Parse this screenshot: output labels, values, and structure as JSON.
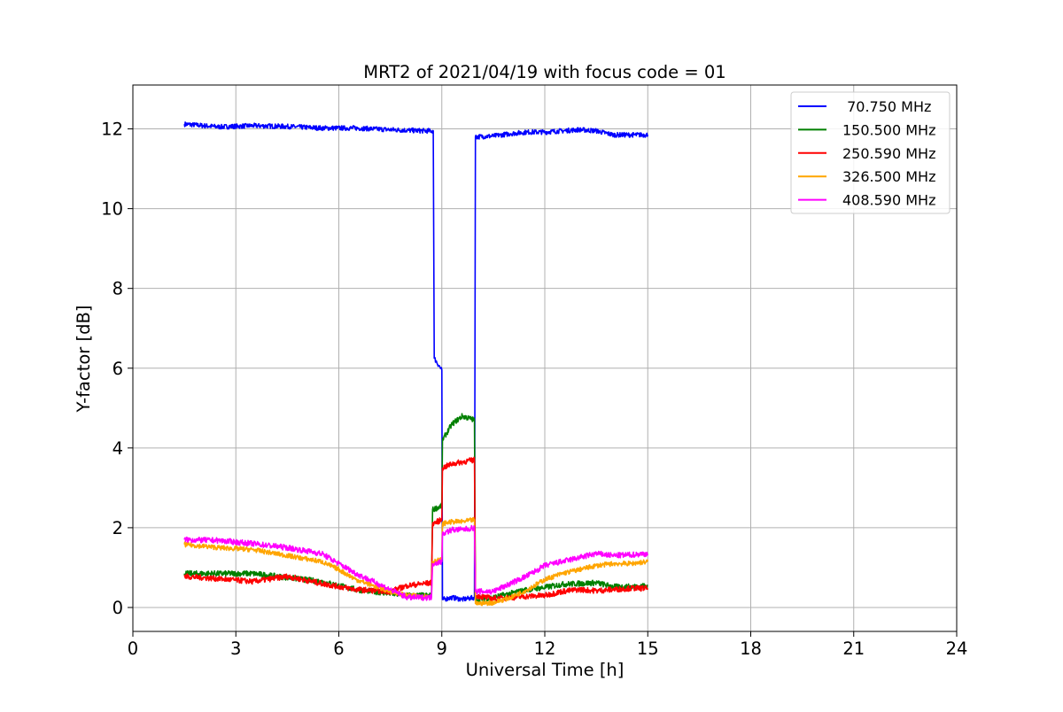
{
  "chart_data": {
    "type": "line",
    "title": "MRT2 of 2021/04/19 with focus code = 01",
    "xlabel": "Universal Time [h]",
    "ylabel": "Y-factor [dB]",
    "xlim": [
      0,
      24
    ],
    "ylim": [
      -0.6,
      13.1
    ],
    "xticks": [
      0,
      3,
      6,
      9,
      12,
      15,
      18,
      21,
      24
    ],
    "yticks": [
      0,
      2,
      4,
      6,
      8,
      10,
      12
    ],
    "grid": true,
    "legend_position": "top-right",
    "series": [
      {
        "name": " 70.750 MHz",
        "color": "#0000ff",
        "noise": 0.06,
        "points": [
          [
            1.5,
            12.12
          ],
          [
            2.5,
            12.05
          ],
          [
            3.5,
            12.08
          ],
          [
            4.5,
            12.06
          ],
          [
            5.5,
            12.02
          ],
          [
            6.5,
            12.02
          ],
          [
            7.5,
            11.98
          ],
          [
            8.5,
            11.95
          ],
          [
            8.75,
            11.95
          ],
          [
            8.78,
            6.25
          ],
          [
            9.0,
            5.95
          ],
          [
            9.02,
            0.2
          ],
          [
            9.3,
            0.25
          ],
          [
            9.6,
            0.2
          ],
          [
            9.95,
            0.25
          ],
          [
            9.98,
            11.8
          ],
          [
            10.5,
            11.82
          ],
          [
            11.0,
            11.88
          ],
          [
            11.5,
            11.92
          ],
          [
            12.0,
            11.92
          ],
          [
            12.5,
            11.95
          ],
          [
            13.0,
            11.98
          ],
          [
            13.5,
            11.95
          ],
          [
            14.0,
            11.85
          ],
          [
            14.5,
            11.85
          ],
          [
            15.0,
            11.85
          ]
        ]
      },
      {
        "name": "150.500 MHz",
        "color": "#008000",
        "noise": 0.07,
        "points": [
          [
            1.5,
            0.85
          ],
          [
            2.5,
            0.85
          ],
          [
            3.5,
            0.85
          ],
          [
            4.5,
            0.75
          ],
          [
            5.5,
            0.65
          ],
          [
            6.5,
            0.45
          ],
          [
            7.5,
            0.35
          ],
          [
            8.0,
            0.3
          ],
          [
            8.7,
            0.3
          ],
          [
            8.73,
            2.45
          ],
          [
            9.0,
            2.55
          ],
          [
            9.02,
            4.2
          ],
          [
            9.3,
            4.6
          ],
          [
            9.6,
            4.8
          ],
          [
            9.95,
            4.7
          ],
          [
            9.98,
            0.2
          ],
          [
            10.5,
            0.25
          ],
          [
            11.0,
            0.35
          ],
          [
            11.5,
            0.45
          ],
          [
            12.0,
            0.5
          ],
          [
            12.5,
            0.58
          ],
          [
            13.0,
            0.6
          ],
          [
            13.5,
            0.62
          ],
          [
            14.0,
            0.52
          ],
          [
            14.5,
            0.52
          ],
          [
            15.0,
            0.55
          ]
        ]
      },
      {
        "name": "250.590 MHz",
        "color": "#ff0000",
        "noise": 0.07,
        "points": [
          [
            1.5,
            0.78
          ],
          [
            2.5,
            0.72
          ],
          [
            3.5,
            0.65
          ],
          [
            4.5,
            0.78
          ],
          [
            5.5,
            0.6
          ],
          [
            6.5,
            0.45
          ],
          [
            7.5,
            0.4
          ],
          [
            8.0,
            0.55
          ],
          [
            8.7,
            0.62
          ],
          [
            8.73,
            2.1
          ],
          [
            9.0,
            2.2
          ],
          [
            9.02,
            3.5
          ],
          [
            9.3,
            3.6
          ],
          [
            9.6,
            3.65
          ],
          [
            9.95,
            3.7
          ],
          [
            9.98,
            0.3
          ],
          [
            10.5,
            0.22
          ],
          [
            11.0,
            0.25
          ],
          [
            11.5,
            0.28
          ],
          [
            12.0,
            0.3
          ],
          [
            12.5,
            0.4
          ],
          [
            13.0,
            0.45
          ],
          [
            13.5,
            0.42
          ],
          [
            14.0,
            0.45
          ],
          [
            14.5,
            0.48
          ],
          [
            15.0,
            0.48
          ]
        ]
      },
      {
        "name": "326.500 MHz",
        "color": "#ffa500",
        "noise": 0.06,
        "points": [
          [
            1.5,
            1.58
          ],
          [
            2.5,
            1.5
          ],
          [
            3.5,
            1.45
          ],
          [
            4.5,
            1.3
          ],
          [
            5.5,
            1.15
          ],
          [
            6.0,
            0.95
          ],
          [
            6.5,
            0.7
          ],
          [
            7.0,
            0.55
          ],
          [
            7.5,
            0.4
          ],
          [
            8.0,
            0.3
          ],
          [
            8.7,
            0.28
          ],
          [
            8.73,
            1.15
          ],
          [
            9.0,
            1.2
          ],
          [
            9.02,
            2.1
          ],
          [
            9.3,
            2.15
          ],
          [
            9.6,
            2.15
          ],
          [
            9.95,
            2.2
          ],
          [
            9.98,
            0.1
          ],
          [
            10.5,
            0.12
          ],
          [
            11.0,
            0.25
          ],
          [
            11.5,
            0.45
          ],
          [
            12.0,
            0.7
          ],
          [
            12.5,
            0.85
          ],
          [
            13.0,
            0.95
          ],
          [
            13.5,
            1.05
          ],
          [
            14.0,
            1.1
          ],
          [
            14.5,
            1.1
          ],
          [
            15.0,
            1.15
          ]
        ]
      },
      {
        "name": "408.590 MHz",
        "color": "#ff00ff",
        "noise": 0.07,
        "points": [
          [
            1.5,
            1.7
          ],
          [
            2.5,
            1.68
          ],
          [
            3.5,
            1.6
          ],
          [
            4.5,
            1.5
          ],
          [
            5.5,
            1.35
          ],
          [
            6.0,
            1.1
          ],
          [
            6.5,
            0.85
          ],
          [
            7.0,
            0.65
          ],
          [
            7.5,
            0.45
          ],
          [
            8.0,
            0.25
          ],
          [
            8.7,
            0.25
          ],
          [
            8.73,
            1.1
          ],
          [
            9.0,
            1.15
          ],
          [
            9.02,
            1.85
          ],
          [
            9.3,
            1.95
          ],
          [
            9.6,
            1.95
          ],
          [
            9.95,
            2.0
          ],
          [
            9.98,
            0.4
          ],
          [
            10.5,
            0.4
          ],
          [
            11.0,
            0.6
          ],
          [
            11.5,
            0.8
          ],
          [
            12.0,
            1.05
          ],
          [
            12.5,
            1.15
          ],
          [
            13.0,
            1.25
          ],
          [
            13.5,
            1.35
          ],
          [
            14.0,
            1.3
          ],
          [
            14.5,
            1.32
          ],
          [
            15.0,
            1.35
          ]
        ]
      }
    ]
  }
}
